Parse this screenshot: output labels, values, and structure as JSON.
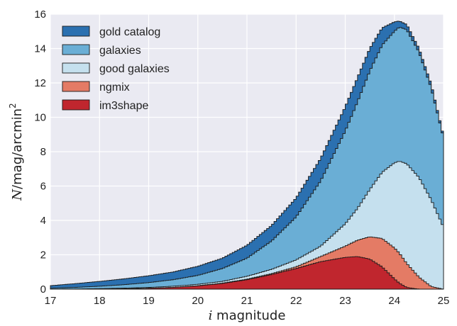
{
  "chart_data": {
    "type": "area",
    "title": "",
    "xlabel_italic": "i",
    "xlabel_rest": " magnitude",
    "ylabel_italic": "N",
    "ylabel_rest": "/mag/arcmin",
    "ylabel_sup": "2",
    "xlim": [
      17,
      25
    ],
    "ylim": [
      0,
      16
    ],
    "x_ticks": [
      17,
      18,
      19,
      20,
      21,
      22,
      23,
      24,
      25
    ],
    "y_ticks": [
      0,
      2,
      4,
      6,
      8,
      10,
      12,
      14,
      16
    ],
    "grid": true,
    "legend_position": "top-left",
    "x": [
      17.0,
      17.5,
      18.0,
      18.5,
      19.0,
      19.5,
      20.0,
      20.5,
      21.0,
      21.5,
      22.0,
      22.5,
      23.0,
      23.25,
      23.5,
      23.75,
      24.0,
      24.1,
      24.25,
      24.5,
      24.75,
      25.0
    ],
    "series": [
      {
        "name": "gold catalog",
        "color": "#2b70b0",
        "values": [
          0.2,
          0.32,
          0.45,
          0.6,
          0.78,
          1.0,
          1.33,
          1.8,
          2.55,
          3.7,
          5.3,
          7.6,
          10.6,
          12.3,
          14.0,
          15.2,
          15.55,
          15.6,
          15.4,
          14.0,
          11.9,
          8.9
        ]
      },
      {
        "name": "galaxies",
        "color": "#6aaed5",
        "values": [
          0.05,
          0.1,
          0.17,
          0.26,
          0.38,
          0.55,
          0.8,
          1.2,
          1.8,
          2.8,
          4.2,
          6.3,
          9.2,
          10.9,
          12.7,
          14.2,
          15.0,
          15.25,
          15.1,
          13.8,
          11.7,
          8.8
        ]
      },
      {
        "name": "good galaxies",
        "color": "#c5e0ee",
        "values": [
          0.0,
          0.01,
          0.03,
          0.06,
          0.1,
          0.17,
          0.28,
          0.45,
          0.75,
          1.15,
          1.7,
          2.5,
          3.8,
          4.7,
          5.8,
          6.8,
          7.35,
          7.45,
          7.3,
          6.5,
          5.2,
          3.6
        ]
      },
      {
        "name": "ngmix",
        "color": "#e47b65",
        "values": [
          0.0,
          0.0,
          0.01,
          0.02,
          0.05,
          0.1,
          0.2,
          0.35,
          0.58,
          0.9,
          1.3,
          1.9,
          2.5,
          2.85,
          3.05,
          2.95,
          2.4,
          2.1,
          1.5,
          0.7,
          0.15,
          0.0
        ]
      },
      {
        "name": "im3shape",
        "color": "#c0262e",
        "values": [
          0.0,
          0.0,
          0.01,
          0.02,
          0.05,
          0.1,
          0.19,
          0.33,
          0.55,
          0.85,
          1.2,
          1.6,
          1.85,
          1.9,
          1.75,
          1.3,
          0.6,
          0.35,
          0.1,
          0.0,
          0.0,
          0.0
        ]
      }
    ]
  }
}
